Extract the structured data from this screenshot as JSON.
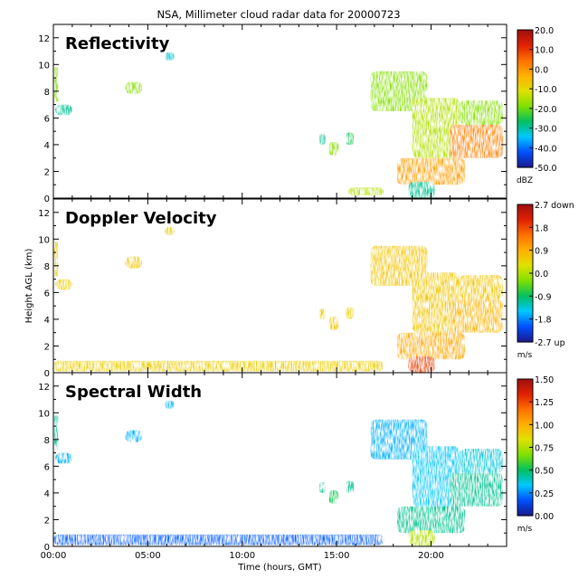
{
  "title": "NSA, Millimeter cloud radar data for 20000723",
  "chart_data": [
    {
      "type": "heatmap",
      "panel_label": "Reflectivity",
      "xlabel": "",
      "ylabel": "",
      "x_unit": "hours",
      "xlim": [
        0,
        24
      ],
      "ylim": [
        0,
        13
      ],
      "y_ticks": [
        0,
        2,
        4,
        6,
        8,
        10,
        12
      ],
      "colorbar": {
        "ticks": [
          "20.0",
          "10.0",
          "0.0",
          "-10.0",
          "-20.0",
          "-30.0",
          "-40.0",
          "-50.0"
        ],
        "unit": "dBZ",
        "colors": [
          "#1a1a8c",
          "#0050ff",
          "#00c8ff",
          "#00c060",
          "#7fe000",
          "#e0e000",
          "#ffb000",
          "#ff7000",
          "#e02000",
          "#a01010"
        ]
      },
      "echo_regions": [
        {
          "t_start": 0.05,
          "t_end": 0.25,
          "h_low": 7.2,
          "h_high": 9.8,
          "level": 0.45
        },
        {
          "t_start": 0.1,
          "t_end": 1.0,
          "h_low": 6.2,
          "h_high": 7.0,
          "level": 0.3
        },
        {
          "t_start": 3.8,
          "t_end": 4.7,
          "h_low": 7.8,
          "h_high": 8.7,
          "level": 0.45
        },
        {
          "t_start": 5.9,
          "t_end": 6.4,
          "h_low": 10.3,
          "h_high": 10.9,
          "level": 0.25
        },
        {
          "t_start": 14.1,
          "t_end": 14.4,
          "h_low": 4.0,
          "h_high": 4.8,
          "level": 0.3
        },
        {
          "t_start": 14.6,
          "t_end": 15.1,
          "h_low": 3.2,
          "h_high": 4.2,
          "level": 0.45
        },
        {
          "t_start": 15.5,
          "t_end": 15.9,
          "h_low": 4.0,
          "h_high": 4.9,
          "level": 0.35
        },
        {
          "t_start": 15.6,
          "t_end": 17.5,
          "h_low": 0.2,
          "h_high": 0.8,
          "level": 0.5
        },
        {
          "t_start": 16.8,
          "t_end": 19.8,
          "h_low": 6.5,
          "h_high": 9.5,
          "level": 0.45
        },
        {
          "t_start": 19.0,
          "t_end": 21.5,
          "h_low": 3.0,
          "h_high": 7.5,
          "level": 0.5
        },
        {
          "t_start": 21.0,
          "t_end": 23.8,
          "h_low": 3.0,
          "h_high": 5.5,
          "level": 0.75
        },
        {
          "t_start": 21.5,
          "t_end": 23.8,
          "h_low": 5.5,
          "h_high": 7.3,
          "level": 0.45
        },
        {
          "t_start": 18.2,
          "t_end": 21.8,
          "h_low": 1.0,
          "h_high": 3.0,
          "level": 0.7
        },
        {
          "t_start": 18.8,
          "t_end": 20.2,
          "h_low": 0.0,
          "h_high": 1.2,
          "level": 0.3
        }
      ]
    },
    {
      "type": "heatmap",
      "panel_label": "Doppler Velocity",
      "xlabel": "",
      "ylabel": "Height AGL (km)",
      "x_unit": "hours",
      "xlim": [
        0,
        24
      ],
      "ylim": [
        0,
        13
      ],
      "y_ticks": [
        0,
        2,
        4,
        6,
        8,
        10,
        12
      ],
      "colorbar": {
        "ticks": [
          "2.7 down",
          "1.8",
          "0.9",
          "0.0",
          "-0.9",
          "-1.8",
          "-2.7 up"
        ],
        "unit": "m/s",
        "colors": [
          "#1a1a8c",
          "#0050ff",
          "#00c8ff",
          "#00c060",
          "#7fe000",
          "#e0e000",
          "#ffb000",
          "#ff7000",
          "#e02000",
          "#a01010"
        ]
      },
      "echo_regions": [
        {
          "t_start": 0.05,
          "t_end": 0.25,
          "h_low": 7.2,
          "h_high": 9.8,
          "level": 0.6
        },
        {
          "t_start": 0.1,
          "t_end": 1.0,
          "h_low": 6.2,
          "h_high": 7.0,
          "level": 0.6
        },
        {
          "t_start": 3.8,
          "t_end": 4.7,
          "h_low": 7.8,
          "h_high": 8.7,
          "level": 0.62
        },
        {
          "t_start": 5.9,
          "t_end": 6.4,
          "h_low": 10.3,
          "h_high": 10.9,
          "level": 0.6
        },
        {
          "t_start": 14.1,
          "t_end": 14.4,
          "h_low": 4.0,
          "h_high": 4.8,
          "level": 0.6
        },
        {
          "t_start": 14.6,
          "t_end": 15.1,
          "h_low": 3.2,
          "h_high": 4.2,
          "level": 0.62
        },
        {
          "t_start": 15.5,
          "t_end": 15.9,
          "h_low": 4.0,
          "h_high": 4.9,
          "level": 0.6
        },
        {
          "t_start": 0.0,
          "t_end": 17.5,
          "h_low": 0.1,
          "h_high": 0.9,
          "level": 0.6
        },
        {
          "t_start": 16.8,
          "t_end": 19.8,
          "h_low": 6.5,
          "h_high": 9.5,
          "level": 0.62
        },
        {
          "t_start": 19.0,
          "t_end": 21.5,
          "h_low": 3.0,
          "h_high": 7.5,
          "level": 0.62
        },
        {
          "t_start": 21.0,
          "t_end": 23.8,
          "h_low": 3.0,
          "h_high": 5.5,
          "level": 0.66
        },
        {
          "t_start": 21.5,
          "t_end": 23.8,
          "h_low": 5.5,
          "h_high": 7.3,
          "level": 0.62
        },
        {
          "t_start": 18.2,
          "t_end": 21.8,
          "h_low": 1.0,
          "h_high": 3.0,
          "level": 0.68
        },
        {
          "t_start": 18.8,
          "t_end": 20.2,
          "h_low": 0.0,
          "h_high": 1.2,
          "level": 0.85
        }
      ]
    },
    {
      "type": "heatmap",
      "panel_label": "Spectral Width",
      "xlabel": "Time (hours, GMT)",
      "ylabel": "",
      "x_unit": "hours",
      "xlim": [
        0,
        24
      ],
      "ylim": [
        0,
        13
      ],
      "y_ticks": [
        0,
        2,
        4,
        6,
        8,
        10,
        12
      ],
      "x_ticks": [
        "00:00",
        "05:00",
        "10:00",
        "15:00",
        "20:00"
      ],
      "colorbar": {
        "ticks": [
          "1.50",
          "1.25",
          "1.00",
          "0.75",
          "0.50",
          "0.25",
          "0.00"
        ],
        "unit": "m/s",
        "colors": [
          "#1a1a8c",
          "#0050ff",
          "#00c8ff",
          "#00c060",
          "#7fe000",
          "#e0e000",
          "#ffb000",
          "#ff7000",
          "#e02000",
          "#a01010"
        ]
      },
      "echo_regions": [
        {
          "t_start": 0.05,
          "t_end": 0.25,
          "h_low": 7.2,
          "h_high": 9.8,
          "level": 0.3
        },
        {
          "t_start": 0.1,
          "t_end": 1.0,
          "h_low": 6.2,
          "h_high": 7.0,
          "level": 0.2
        },
        {
          "t_start": 3.8,
          "t_end": 4.7,
          "h_low": 7.8,
          "h_high": 8.7,
          "level": 0.2
        },
        {
          "t_start": 5.9,
          "t_end": 6.4,
          "h_low": 10.3,
          "h_high": 10.9,
          "level": 0.2
        },
        {
          "t_start": 14.1,
          "t_end": 14.4,
          "h_low": 4.0,
          "h_high": 4.8,
          "level": 0.3
        },
        {
          "t_start": 14.6,
          "t_end": 15.1,
          "h_low": 3.2,
          "h_high": 4.2,
          "level": 0.35
        },
        {
          "t_start": 15.5,
          "t_end": 15.9,
          "h_low": 4.0,
          "h_high": 4.9,
          "level": 0.3
        },
        {
          "t_start": 0.0,
          "t_end": 17.5,
          "h_low": 0.1,
          "h_high": 0.9,
          "level": 0.12
        },
        {
          "t_start": 16.8,
          "t_end": 19.8,
          "h_low": 6.5,
          "h_high": 9.5,
          "level": 0.2
        },
        {
          "t_start": 19.0,
          "t_end": 21.5,
          "h_low": 3.0,
          "h_high": 7.5,
          "level": 0.22
        },
        {
          "t_start": 21.0,
          "t_end": 23.8,
          "h_low": 3.0,
          "h_high": 5.5,
          "level": 0.3
        },
        {
          "t_start": 21.5,
          "t_end": 23.8,
          "h_low": 5.5,
          "h_high": 7.3,
          "level": 0.25
        },
        {
          "t_start": 18.2,
          "t_end": 21.8,
          "h_low": 1.0,
          "h_high": 3.0,
          "level": 0.3
        },
        {
          "t_start": 18.8,
          "t_end": 20.2,
          "h_low": 0.0,
          "h_high": 1.2,
          "level": 0.5
        }
      ]
    }
  ]
}
